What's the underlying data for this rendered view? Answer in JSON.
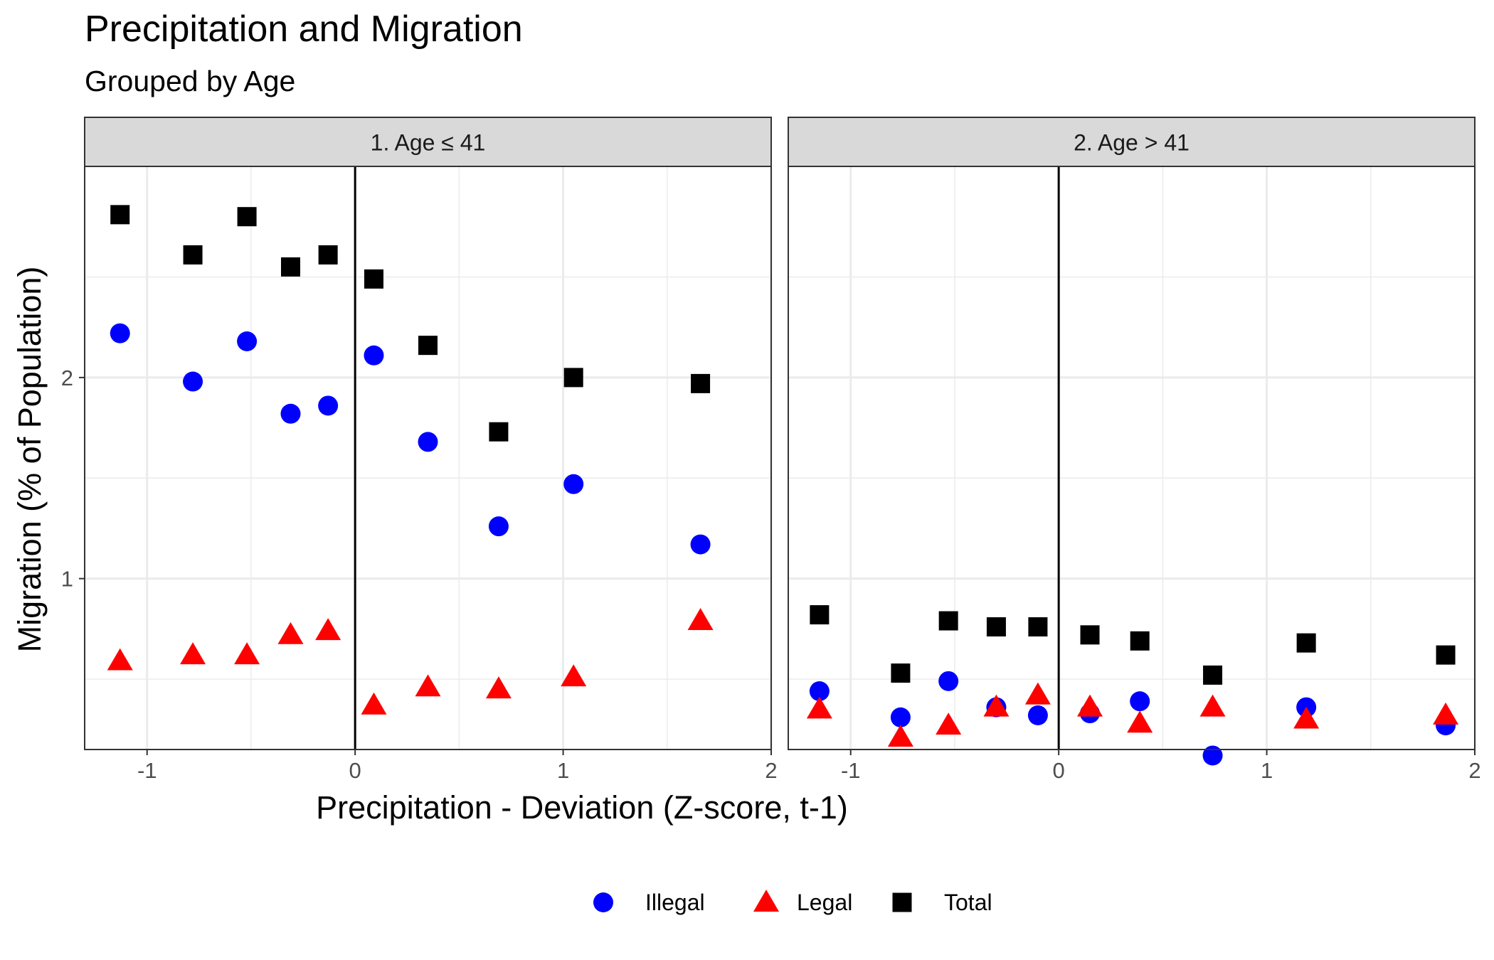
{
  "title": "Precipitation and Migration",
  "subtitle": "Grouped by Age",
  "chart_data": {
    "type": "scatter",
    "title": "Precipitation and Migration",
    "subtitle": "Grouped by Age",
    "xlabel": "Precipitation - Deviation (Z-score, t-1)",
    "ylabel": "Migration (% of Population)",
    "xlim": [
      -1.3,
      2.0
    ],
    "ylim": [
      0.15,
      3.05
    ],
    "x_ticks": [
      -1,
      0,
      1,
      2
    ],
    "y_ticks": [
      1,
      2
    ],
    "grid": true,
    "vline_x": 0,
    "legend_position": "bottom",
    "legend": [
      {
        "name": "Illegal",
        "shape": "circle",
        "color": "#0000ff"
      },
      {
        "name": "Legal",
        "shape": "triangle",
        "color": "#ff0000"
      },
      {
        "name": "Total",
        "shape": "square",
        "color": "#000000"
      }
    ],
    "panels": [
      {
        "label": "1. Age ≤ 41",
        "series": [
          {
            "name": "Illegal",
            "x": [
              -1.13,
              -0.78,
              -0.52,
              -0.31,
              -0.13,
              0.09,
              0.35,
              0.69,
              1.05,
              1.66
            ],
            "y": [
              2.22,
              1.98,
              2.18,
              1.82,
              1.86,
              2.11,
              1.68,
              1.26,
              1.47,
              1.17
            ]
          },
          {
            "name": "Legal",
            "x": [
              -1.13,
              -0.78,
              -0.52,
              -0.31,
              -0.13,
              0.09,
              0.35,
              0.69,
              1.05,
              1.66
            ],
            "y": [
              0.59,
              0.62,
              0.62,
              0.72,
              0.74,
              0.37,
              0.46,
              0.45,
              0.51,
              0.79
            ]
          },
          {
            "name": "Total",
            "x": [
              -1.13,
              -0.78,
              -0.52,
              -0.31,
              -0.13,
              0.09,
              0.35,
              0.69,
              1.05,
              1.66
            ],
            "y": [
              2.81,
              2.61,
              2.8,
              2.55,
              2.61,
              2.49,
              2.16,
              1.73,
              2.0,
              1.97
            ]
          }
        ]
      },
      {
        "label": "2. Age > 41",
        "series": [
          {
            "name": "Illegal",
            "x": [
              -1.15,
              -0.76,
              -0.53,
              -0.3,
              -0.1,
              0.15,
              0.39,
              0.74,
              1.19,
              1.86
            ],
            "y": [
              0.44,
              0.31,
              0.49,
              0.36,
              0.32,
              0.33,
              0.39,
              0.12,
              0.36,
              0.27
            ]
          },
          {
            "name": "Legal",
            "x": [
              -1.15,
              -0.76,
              -0.53,
              -0.3,
              -0.1,
              0.15,
              0.39,
              0.74,
              1.19,
              1.86
            ],
            "y": [
              0.35,
              0.21,
              0.27,
              0.36,
              0.42,
              0.36,
              0.28,
              0.36,
              0.3,
              0.32
            ]
          },
          {
            "name": "Total",
            "x": [
              -1.15,
              -0.76,
              -0.53,
              -0.3,
              -0.1,
              0.15,
              0.39,
              0.74,
              1.19,
              1.86
            ],
            "y": [
              0.82,
              0.53,
              0.79,
              0.76,
              0.76,
              0.72,
              0.69,
              0.52,
              0.68,
              0.62
            ]
          }
        ]
      }
    ]
  }
}
